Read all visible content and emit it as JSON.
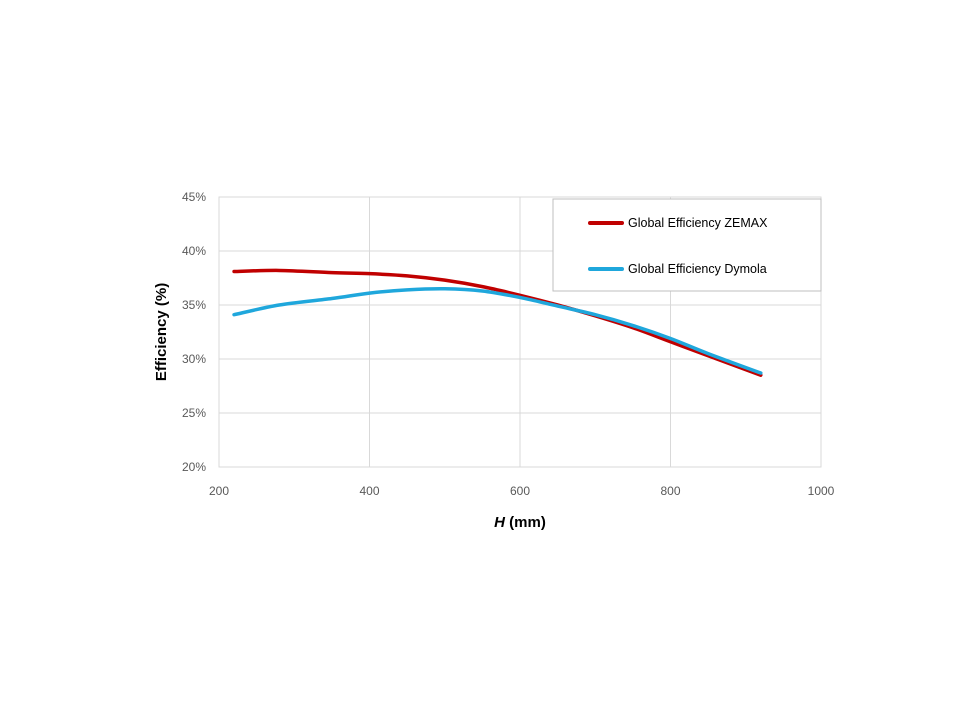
{
  "chart_data": {
    "type": "line",
    "title": "",
    "xlabel_var": "H",
    "xlabel_unit": " (mm)",
    "ylabel": "Efficiency (%)",
    "xlim": [
      200,
      1000
    ],
    "ylim": [
      20,
      45
    ],
    "x_ticks": [
      "200",
      "400",
      "600",
      "800",
      "1000"
    ],
    "y_ticks": [
      "20%",
      "25%",
      "30%",
      "35%",
      "40%",
      "45%"
    ],
    "grid": true,
    "legend_position": "top-right",
    "series": [
      {
        "name": "Global Efficiency ZEMAX",
        "color": "#c00000",
        "x": [
          220,
          280,
          350,
          400,
          450,
          500,
          550,
          600,
          650,
          700,
          750,
          800,
          850,
          920
        ],
        "y": [
          38.1,
          38.2,
          38.0,
          37.9,
          37.7,
          37.3,
          36.7,
          35.9,
          35.0,
          34.0,
          32.9,
          31.6,
          30.3,
          28.5
        ]
      },
      {
        "name": "Global Efficiency Dymola",
        "color": "#1fa7dc",
        "x": [
          220,
          280,
          350,
          400,
          450,
          500,
          550,
          600,
          650,
          700,
          750,
          800,
          850,
          920
        ],
        "y": [
          34.1,
          35.0,
          35.6,
          36.1,
          36.4,
          36.5,
          36.3,
          35.7,
          34.9,
          34.1,
          33.1,
          31.9,
          30.5,
          28.7
        ]
      }
    ]
  }
}
